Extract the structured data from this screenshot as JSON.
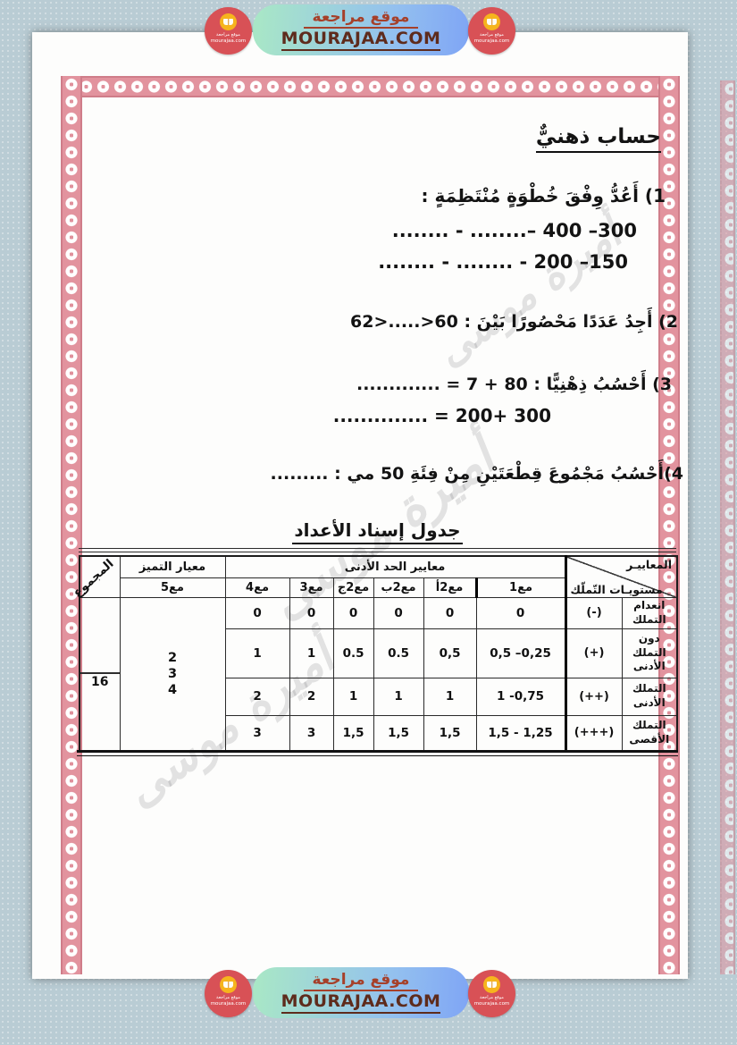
{
  "brand": {
    "pill_ar": "موقع مراجعة",
    "pill_en": "MOURAJAA.COM",
    "logo_line1": "موقع مراجعة",
    "logo_line2": "mourajaa.com"
  },
  "icons": {
    "logo": "open-book-icon"
  },
  "colors": {
    "logo_red": "#d85156",
    "logo_yellow": "#f6b41d",
    "pill_green": "#a9e8c5",
    "pill_blue": "#7fa5f5",
    "border_pink": "#e2939e",
    "text_brick": "#a6402a",
    "text_brown": "#5e2b1c"
  },
  "page": {
    "title": "حساب ذهنيٌّ",
    "questions": {
      "q1": {
        "label": "1) أَعُدُّ وِفْقَ خُطْوَةٍ مُنْتَظِمَةٍ :",
        "line1": "........ - ........– 400 –300",
        "line2": "........ - ........ - 200 –150"
      },
      "q2": {
        "label": "2) أَجِدُ عَدَدًا مَحْصُورًا بَيْنَ :",
        "expr": "62>.....>60"
      },
      "q3": {
        "label": "3) أَحْسُبُ ذِهْنِيًّا :",
        "line1": "............. = 7 + 80",
        "line2": ".............. = 200+ 300"
      },
      "q4": {
        "label": "4)أَحْسُبُ مَجْمُوعَ قِطْعَتَيْنِ مِنْ فِئَةِ 50 مي : ........."
      }
    },
    "table_title": "جدول إسناد الأعداد"
  },
  "table": {
    "corner_top": "المعاييـر",
    "corner_bottom": "مستويـات التّملّك",
    "group_min": "معايير الحد الأدنى",
    "group_excellence": "معيار التميز",
    "total_label": "المجموع",
    "cols": [
      "مع1",
      "مع2أ",
      "مع2ب",
      "مع2ج",
      "مع3",
      "مع4",
      "مع5"
    ],
    "rows": [
      {
        "level": "انعدام التملك",
        "symbol": "(-)",
        "values": [
          "0",
          "0",
          "0",
          "0",
          "0",
          "0"
        ]
      },
      {
        "level": "دون التملك الأدنى",
        "symbol": "(+)",
        "values": [
          "0,5 –0,25",
          "0,5",
          "0.5",
          "0.5",
          "1",
          "1"
        ]
      },
      {
        "level": "التملك الأدنى",
        "symbol": "(++)",
        "values": [
          "1 -0,75",
          "1",
          "1",
          "1",
          "2",
          "2"
        ]
      },
      {
        "level": "التملك الأقصى",
        "symbol": "(+++)",
        "values": [
          "1,5 - 1,25",
          "1,5",
          "1,5",
          "1,5",
          "3",
          "3"
        ]
      }
    ],
    "excellence_values": [
      "2",
      "3",
      "4"
    ],
    "total_value": "16"
  },
  "watermark": {
    "text": "أميرة موسى"
  }
}
